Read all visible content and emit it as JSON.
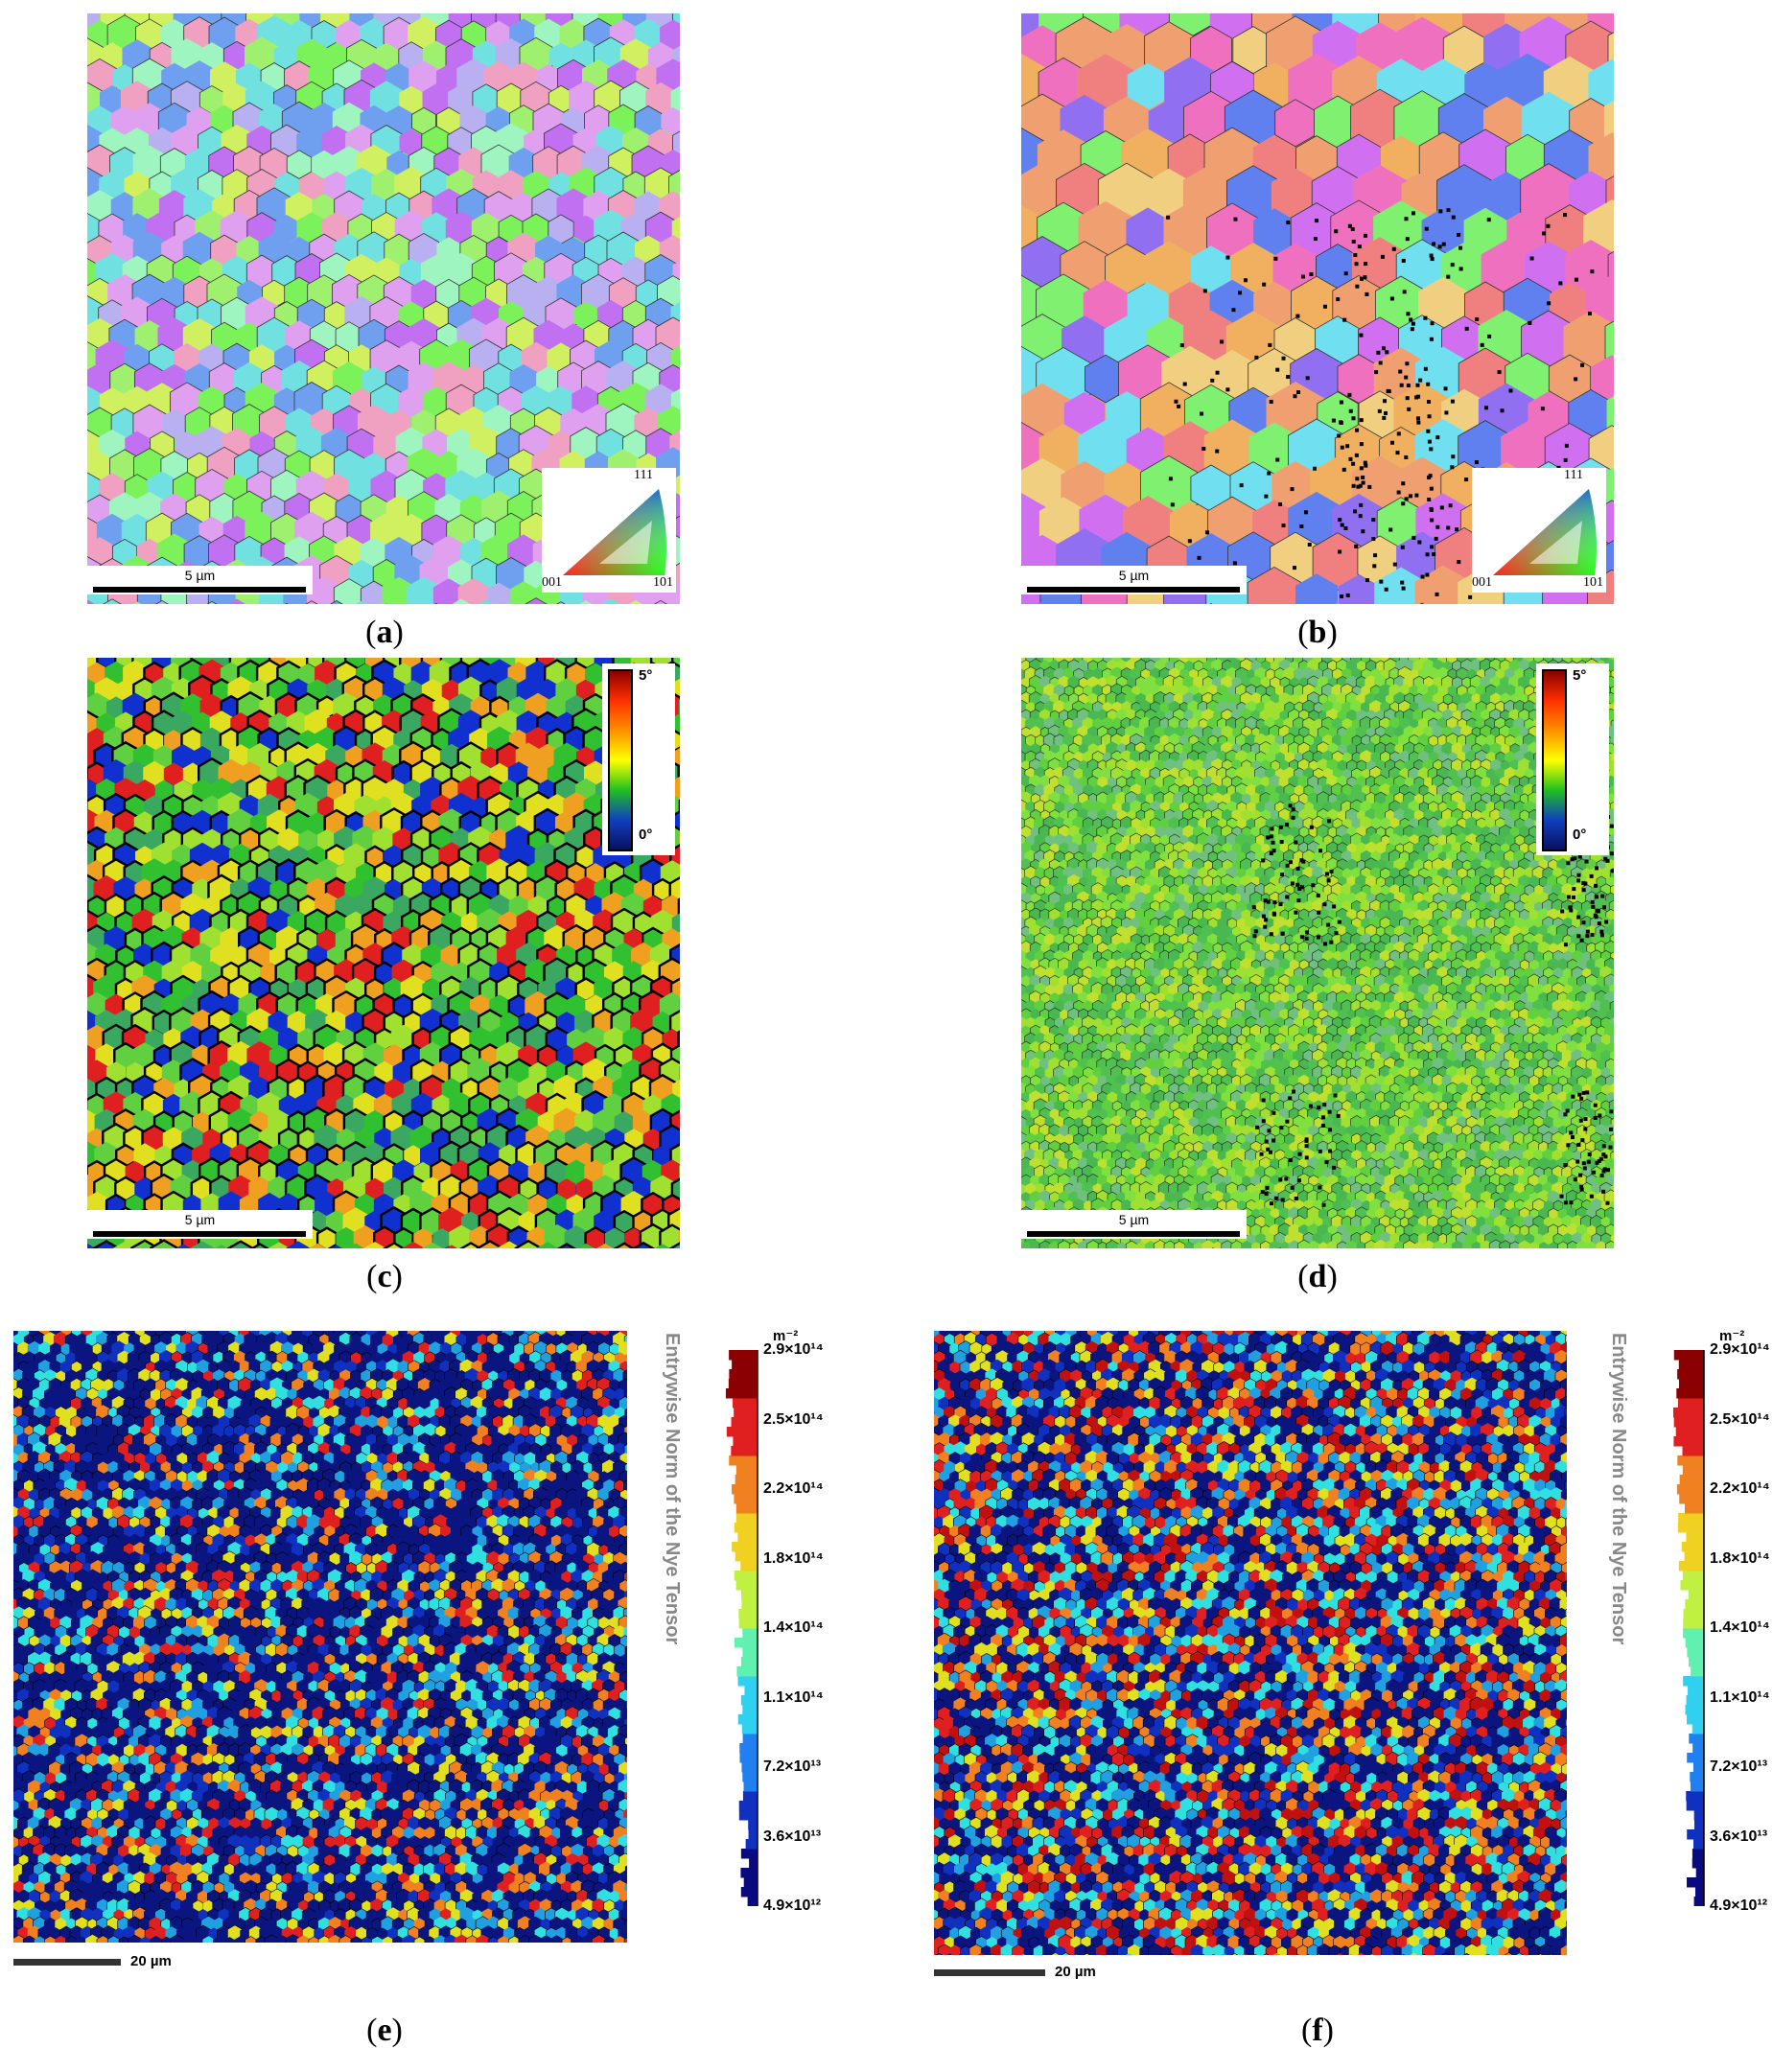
{
  "panels": [
    {
      "id": "a",
      "type": "ipf",
      "caption": "a",
      "scalebar": "5 µm",
      "ipf_key": {
        "top": "111",
        "left": "001",
        "right": "101"
      }
    },
    {
      "id": "b",
      "type": "ipf",
      "caption": "b",
      "scalebar": "5 µm",
      "ipf_key": {
        "top": "111",
        "left": "001",
        "right": "101"
      }
    },
    {
      "id": "c",
      "type": "misorientation",
      "caption": "c",
      "scalebar": "5 µm",
      "legend": {
        "max": "5°",
        "min": "0°"
      }
    },
    {
      "id": "d",
      "type": "misorientation",
      "caption": "d",
      "scalebar": "5 µm",
      "legend": {
        "max": "5°",
        "min": "0°"
      }
    },
    {
      "id": "e",
      "type": "nye",
      "caption": "e",
      "scalebar": "20 µm"
    },
    {
      "id": "f",
      "type": "nye",
      "caption": "f",
      "scalebar": "20 µm"
    }
  ],
  "nye_scale": {
    "title": "Entrywise Norm of the Nye Tensor",
    "unit": "m⁻²",
    "ticks": [
      "2.9×10¹⁴",
      "2.5×10¹⁴",
      "2.2×10¹⁴",
      "1.8×10¹⁴",
      "1.4×10¹⁴",
      "1.1×10¹⁴",
      "7.2×10¹³",
      "3.6×10¹³",
      "4.9×10¹²"
    ]
  },
  "colors": {
    "ipf_a": [
      "#7cf25a",
      "#a0f070",
      "#b8b0f0",
      "#6fa0f0",
      "#c070f0",
      "#e0a0f0",
      "#70e0e0",
      "#d0f060",
      "#f0a0c0",
      "#9ff5c0"
    ],
    "ipf_b": [
      "#f0a070",
      "#f08080",
      "#d070f0",
      "#9070f0",
      "#70e0f0",
      "#f0b060",
      "#f070c0",
      "#80f070",
      "#6080f0",
      "#f0d080"
    ],
    "misor": [
      "#1030d0",
      "#3aa860",
      "#60d040",
      "#30c030",
      "#a0e030",
      "#e0e020",
      "#f0a020",
      "#e02020"
    ],
    "misor_d": [
      "#60d040",
      "#4ab850",
      "#80e040",
      "#a0e030",
      "#70c080",
      "#50c050",
      "#c0e030"
    ],
    "nye_e": [
      "#0a1580",
      "#0a1580",
      "#0a1580",
      "#0a1580",
      "#0a1580",
      "#1030c0",
      "#20a0e0",
      "#30e0e0",
      "#e0e020",
      "#f08020",
      "#e02020"
    ],
    "nye_f": [
      "#0a1580",
      "#0a1580",
      "#1030c0",
      "#20a0e0",
      "#30e0e0",
      "#e0e020",
      "#f08020",
      "#e02020",
      "#c01010",
      "#0a1580"
    ]
  }
}
